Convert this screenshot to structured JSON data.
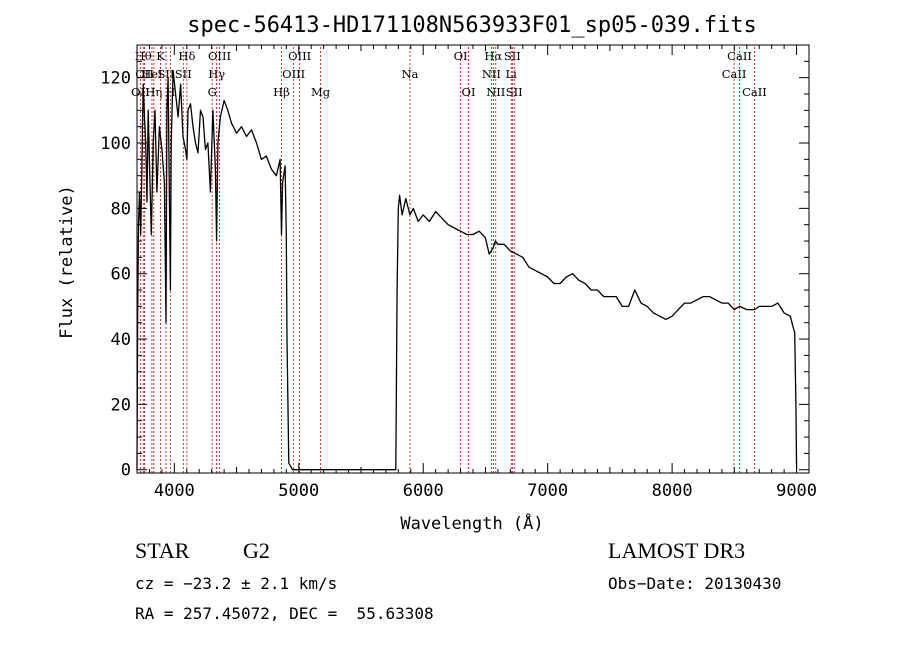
{
  "chart_data": {
    "type": "line",
    "title": "spec-56413-HD171108N563933F01_sp05-039.fits",
    "xlabel": "Wavelength (Å)",
    "ylabel": "Flux (relative)",
    "xlim": [
      3700,
      9100
    ],
    "ylim": [
      -1,
      130
    ],
    "xticks": [
      4000,
      5000,
      6000,
      7000,
      8000,
      9000
    ],
    "yticks": [
      0,
      20,
      40,
      60,
      80,
      100,
      120
    ],
    "grid": false,
    "line_color": "#000000",
    "marker_color": "#d40000",
    "series": [
      {
        "x": [
          3700,
          3705,
          3712,
          3720,
          3730,
          3740,
          3750,
          3760,
          3770,
          3780,
          3790,
          3800,
          3815,
          3830,
          3845,
          3860,
          3880,
          3900,
          3920,
          3933,
          3940,
          3950,
          3968,
          3975,
          3990,
          4010,
          4030,
          4050,
          4070,
          4090,
          4101,
          4110,
          4130,
          4150,
          4170,
          4190,
          4210,
          4230,
          4250,
          4270,
          4290,
          4310,
          4330,
          4340,
          4350,
          4370,
          4400,
          4430,
          4460,
          4500,
          4540,
          4580,
          4620,
          4660,
          4700,
          4740,
          4780,
          4820,
          4850,
          4861,
          4870,
          4890,
          4900,
          4905,
          4920,
          4950,
          5000,
          5100,
          5200,
          5300,
          5400,
          5500,
          5600,
          5700,
          5780,
          5790,
          5800,
          5810,
          5830,
          5860,
          5893,
          5920,
          5960,
          6000,
          6050,
          6100,
          6150,
          6200,
          6250,
          6300,
          6350,
          6400,
          6450,
          6500,
          6530,
          6563,
          6580,
          6600,
          6650,
          6700,
          6750,
          6800,
          6850,
          6900,
          6950,
          7000,
          7050,
          7100,
          7150,
          7200,
          7250,
          7300,
          7350,
          7400,
          7450,
          7500,
          7550,
          7600,
          7650,
          7700,
          7750,
          7800,
          7850,
          7900,
          7950,
          8000,
          8050,
          8100,
          8150,
          8200,
          8250,
          8300,
          8350,
          8400,
          8450,
          8498,
          8542,
          8600,
          8662,
          8700,
          8750,
          8800,
          8850,
          8900,
          8950,
          8970,
          8985,
          8995,
          9000
        ],
        "y": [
          0,
          45,
          75,
          85,
          72,
          95,
          118,
          108,
          100,
          82,
          110,
          95,
          72,
          100,
          110,
          85,
          105,
          98,
          88,
          45,
          110,
          120,
          55,
          100,
          122,
          115,
          108,
          118,
          102,
          98,
          95,
          110,
          112,
          105,
          100,
          97,
          110,
          108,
          98,
          100,
          85,
          110,
          92,
          70,
          100,
          108,
          113,
          110,
          106,
          103,
          105,
          102,
          104,
          100,
          95,
          96,
          92,
          90,
          95,
          72,
          88,
          93,
          72,
          40,
          2,
          0,
          0,
          0,
          0,
          0,
          0,
          0,
          0,
          0,
          0,
          55,
          80,
          84,
          78,
          83,
          78,
          80,
          76,
          78,
          76,
          79,
          77,
          75,
          74,
          73,
          72,
          72,
          73,
          71,
          66,
          68,
          70,
          69,
          69,
          67,
          66,
          65,
          62,
          61,
          60,
          59,
          57,
          57,
          59,
          60,
          58,
          57,
          55,
          55,
          53,
          53,
          53,
          50,
          50,
          55,
          51,
          50,
          48,
          47,
          46,
          47,
          49,
          51,
          51,
          52,
          53,
          53,
          52,
          51,
          51,
          49,
          50,
          49,
          49,
          50,
          50,
          50,
          51,
          48,
          47,
          44,
          42,
          20,
          0
        ]
      }
    ],
    "lines": [
      {
        "x": 3727,
        "label": "OII",
        "row": 3
      },
      {
        "x": 3750,
        "label": "Hθ",
        "row": 1
      },
      {
        "x": 3760,
        "label": "OII",
        "row": 2
      },
      {
        "x": 3820,
        "label": "HeI",
        "row": 2
      },
      {
        "x": 3835,
        "label": "Hη",
        "row": 3
      },
      {
        "x": 3889,
        "label": "K",
        "row": 1
      },
      {
        "x": 3933,
        "label": "SII",
        "row": 2
      },
      {
        "x": 3968,
        "label": "H",
        "row": 3
      },
      {
        "x": 4101,
        "label": "Hδ",
        "row": 1
      },
      {
        "x": 4072,
        "label": "SII",
        "row": 2
      },
      {
        "x": 4304,
        "label": "G",
        "row": 3
      },
      {
        "x": 4340,
        "label": "Hγ",
        "row": 2
      },
      {
        "x": 4363,
        "label": "OIII",
        "row": 1
      },
      {
        "x": 4861,
        "label": "Hβ",
        "row": 3
      },
      {
        "x": 4959,
        "label": "OIII",
        "row": 2
      },
      {
        "x": 5007,
        "label": "OIII",
        "row": 1
      },
      {
        "x": 5175,
        "label": "Mg",
        "row": 3
      },
      {
        "x": 5893,
        "label": "Na",
        "row": 2
      },
      {
        "x": 6300,
        "label": "OI",
        "row": 1
      },
      {
        "x": 6364,
        "label": "OI",
        "row": 3
      },
      {
        "x": 6548,
        "label": "NII",
        "row": 2
      },
      {
        "x": 6563,
        "label": "Hα",
        "row": 1
      },
      {
        "x": 6583,
        "label": "NII",
        "row": 3
      },
      {
        "x": 6707,
        "label": "Li",
        "row": 2
      },
      {
        "x": 6716,
        "label": "SII",
        "row": 1
      },
      {
        "x": 6731,
        "label": "SII",
        "row": 3
      },
      {
        "x": 8498,
        "label": "CaII",
        "row": 2
      },
      {
        "x": 8542,
        "label": "CaII",
        "row": 1
      },
      {
        "x": 8662,
        "label": "CaII",
        "row": 3
      }
    ]
  },
  "info": {
    "class_label": "STAR",
    "subclass": "G2",
    "survey": "LAMOST DR3",
    "cz_text": "cz = −23.2 ± 2.1 km/s",
    "obs_date": "Obs−Date: 20130430",
    "radec": "RA = 257.45072, DEC =  55.63308"
  }
}
